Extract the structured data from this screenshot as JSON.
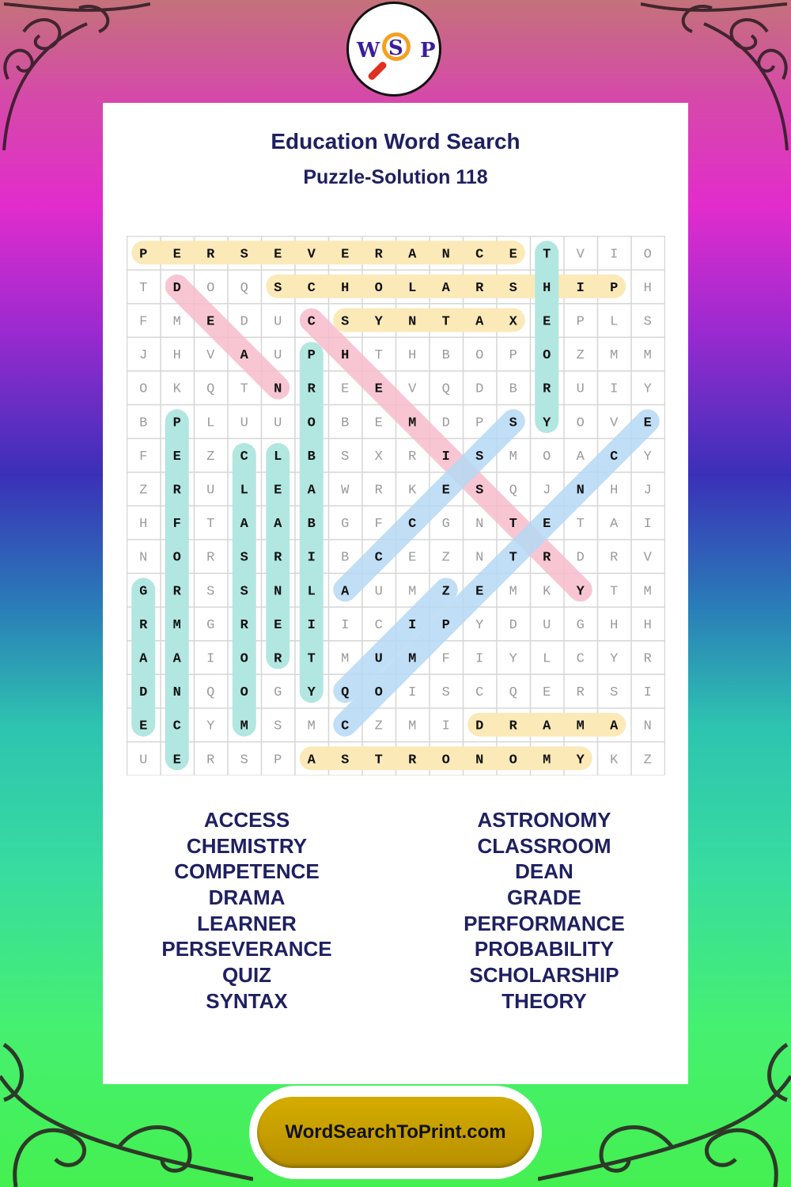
{
  "logo": {
    "letters": [
      "W",
      "S",
      "P"
    ]
  },
  "title": "Education Word Search",
  "subtitle": "Puzzle-Solution 118",
  "grid": [
    "PERSEVERANCETVIO",
    "TDOQSCHOLARSHIPH",
    "FMEDUCSYNTAXEPLS",
    "JHVAUPHTHBOPOZMM",
    "OKQTNREEVQDBRUIY",
    "BPLUUOBEMDPSYOVE",
    "FEZCLBSXRISMOACY",
    "ZRULEAWRKESQJNHJ",
    "HFTAABGFCGNTETAI",
    "NORSRIBCEZNTRDRV",
    "GRSSNLAUMZEMKYTM",
    "RMGREIICIPYDUGHH",
    "AAIORTMUMFIYLCYR",
    "DNQOGYQOISCQERSI",
    "ECYMSMCZMIDRAMAN",
    "UERSPASTRONOMYKZ"
  ],
  "colors": {
    "yellow": "#fbe9b8",
    "teal": "#b2e6e1",
    "pink": "#f7bccb",
    "blue": "#b5d8f3",
    "text": "#1f2060"
  },
  "solutions": [
    {
      "word": "PERSEVERANCE",
      "from": [
        0,
        0
      ],
      "to": [
        0,
        11
      ],
      "color": "yellow"
    },
    {
      "word": "SCHOLARSHIP",
      "from": [
        1,
        4
      ],
      "to": [
        1,
        14
      ],
      "color": "yellow"
    },
    {
      "word": "SYNTAX",
      "from": [
        2,
        6
      ],
      "to": [
        2,
        11
      ],
      "color": "yellow"
    },
    {
      "word": "DRAMA",
      "from": [
        14,
        10
      ],
      "to": [
        14,
        14
      ],
      "color": "yellow"
    },
    {
      "word": "ASTRONOMY",
      "from": [
        15,
        5
      ],
      "to": [
        15,
        13
      ],
      "color": "yellow"
    },
    {
      "word": "THEORY",
      "from": [
        0,
        12
      ],
      "to": [
        5,
        12
      ],
      "color": "teal"
    },
    {
      "word": "PROBABILITY",
      "from": [
        3,
        5
      ],
      "to": [
        13,
        5
      ],
      "color": "teal"
    },
    {
      "word": "PERFORMANCE",
      "from": [
        5,
        1
      ],
      "to": [
        15,
        1
      ],
      "color": "teal"
    },
    {
      "word": "CLASSROOM",
      "from": [
        6,
        3
      ],
      "to": [
        14,
        3
      ],
      "color": "teal"
    },
    {
      "word": "LEARNER",
      "from": [
        6,
        4
      ],
      "to": [
        12,
        4
      ],
      "color": "teal"
    },
    {
      "word": "GRADE",
      "from": [
        10,
        0
      ],
      "to": [
        14,
        0
      ],
      "color": "teal"
    },
    {
      "word": "DEAN",
      "from": [
        1,
        1
      ],
      "to": [
        4,
        4
      ],
      "color": "pink"
    },
    {
      "word": "CHEMISTRY",
      "from": [
        2,
        5
      ],
      "to": [
        10,
        13
      ],
      "color": "pink"
    },
    {
      "word": "ACCESS",
      "from": [
        10,
        6
      ],
      "to": [
        5,
        11
      ],
      "color": "blue"
    },
    {
      "word": "COMPETENCE",
      "from": [
        14,
        6
      ],
      "to": [
        5,
        15
      ],
      "color": "blue"
    },
    {
      "word": "QUIZ",
      "from": [
        13,
        6
      ],
      "to": [
        10,
        9
      ],
      "color": "blue"
    }
  ],
  "word_list_left": [
    "ACCESS",
    "CHEMISTRY",
    "COMPETENCE",
    "DRAMA",
    "LEARNER",
    "PERSEVERANCE",
    "QUIZ",
    "SYNTAX"
  ],
  "word_list_right": [
    "ASTRONOMY",
    "CLASSROOM",
    "DEAN",
    "GRADE",
    "PERFORMANCE",
    "PROBABILITY",
    "SCHOLARSHIP",
    "THEORY"
  ],
  "footer": "WordSearchToPrint.com"
}
